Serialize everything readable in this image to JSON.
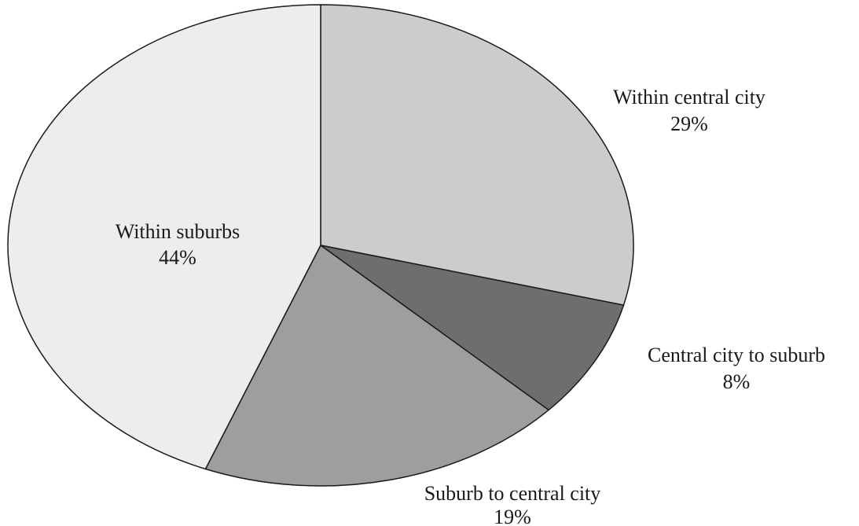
{
  "chart_data": {
    "type": "pie",
    "title": "",
    "start_angle_deg": 0,
    "direction": "clockwise",
    "legend": "none",
    "slices": [
      {
        "label": "Within central city",
        "value": 29,
        "value_label": "29%",
        "color": "#cccccc"
      },
      {
        "label": "Central city to suburb",
        "value": 8,
        "value_label": "8%",
        "color": "#6e6e6e"
      },
      {
        "label": "Suburb to central city",
        "value": 19,
        "value_label": "19%",
        "color": "#9e9e9e"
      },
      {
        "label": "Within suburbs",
        "value": 44,
        "value_label": "44%",
        "color": "#ededed"
      }
    ]
  }
}
